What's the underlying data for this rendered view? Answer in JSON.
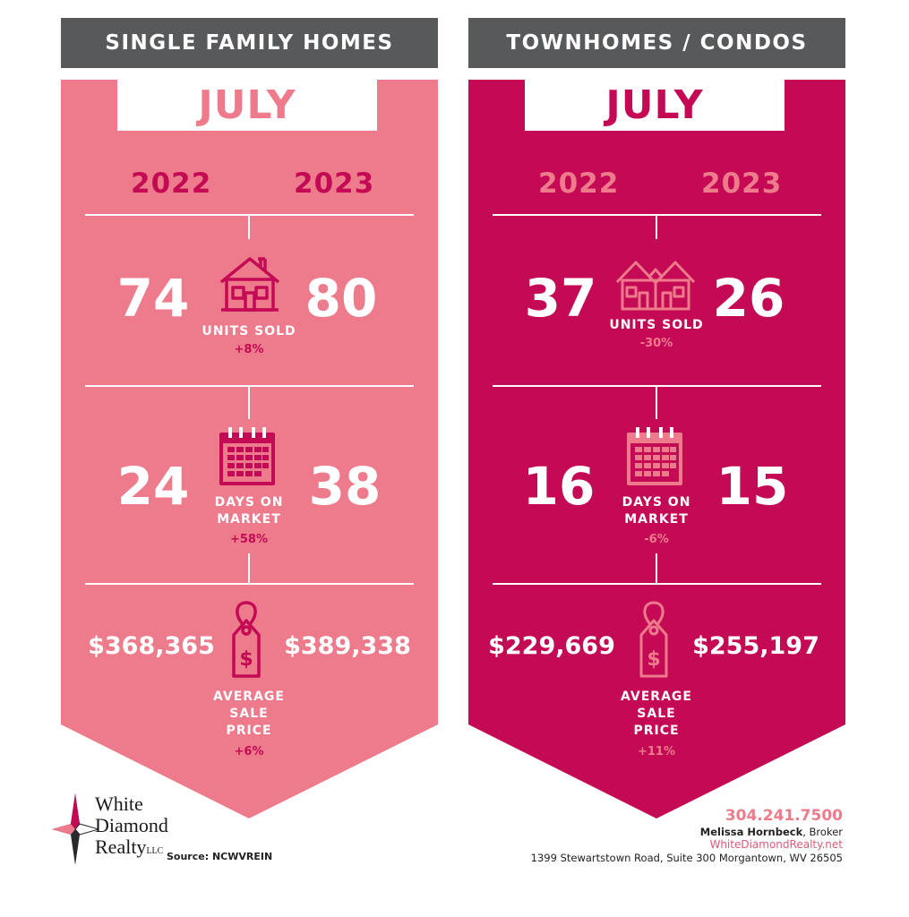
{
  "colors": {
    "left_bg": "#ee7b8c",
    "right_bg": "#c40a55",
    "header_bg": "#58595b",
    "left_accent": "#c40a55",
    "right_accent": "#ee7b8c"
  },
  "panels": [
    {
      "header": "SINGLE FAMILY HOMES",
      "month": "JULY",
      "year_a": "2022",
      "year_b": "2023",
      "units": {
        "a": "74",
        "b": "80",
        "label": "UNITS SOLD",
        "change": "+8%"
      },
      "days": {
        "a": "24",
        "b": "38",
        "label1": "DAYS ON",
        "label2": "MARKET",
        "change": "+58%"
      },
      "price": {
        "a": "$368,365",
        "b": "$389,338",
        "label1": "AVERAGE",
        "label2": "SALE",
        "label3": "PRICE",
        "change": "+6%"
      }
    },
    {
      "header": "TOWNHOMES / CONDOS",
      "month": "JULY",
      "year_a": "2022",
      "year_b": "2023",
      "units": {
        "a": "37",
        "b": "26",
        "label": "UNITS SOLD",
        "change": "-30%"
      },
      "days": {
        "a": "16",
        "b": "15",
        "label1": "DAYS ON",
        "label2": "MARKET",
        "change": "-6%"
      },
      "price": {
        "a": "$229,669",
        "b": "$255,197",
        "label1": "AVERAGE",
        "label2": "SALE",
        "label3": "PRICE",
        "change": "+11%"
      }
    }
  ],
  "footer": {
    "logo_line1": "White",
    "logo_line2": "Diamond",
    "logo_line3": "Realty",
    "logo_llc": "LLC",
    "source": "Source: NCWVREIN",
    "phone": "304.241.7500",
    "broker_name": "Melissa Hornbeck",
    "broker_title": ", Broker",
    "website": "WhiteDiamondRealty.net",
    "address": "1399 Stewartstown Road, Suite 300 Morgantown, WV 26505"
  }
}
